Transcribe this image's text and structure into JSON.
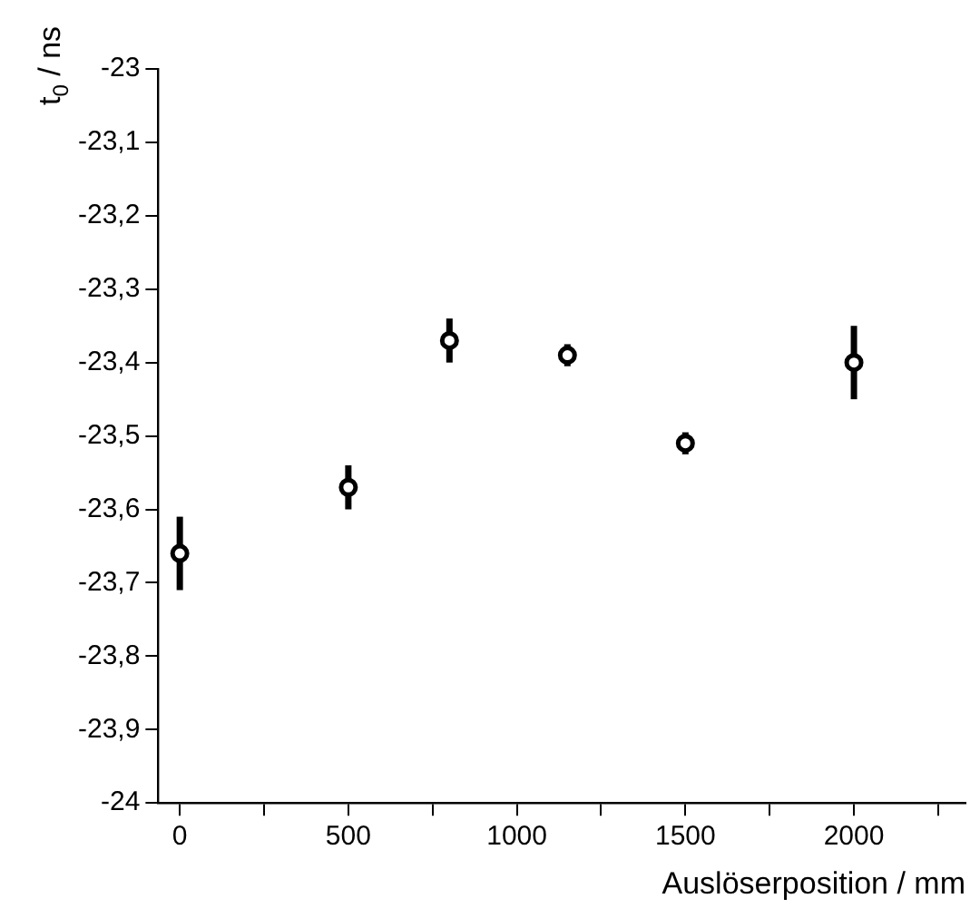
{
  "chart_data": {
    "type": "scatter",
    "xlabel": "Auslöserposition / mm",
    "ylabel": "t$_{0}$ / ns",
    "x": [
      0,
      500,
      800,
      1150,
      1500,
      2000
    ],
    "values": [
      -23.66,
      -23.57,
      -23.37,
      -23.39,
      -23.51,
      -23.4
    ],
    "errors": [
      0.05,
      0.03,
      0.03,
      0.015,
      0.015,
      0.05
    ],
    "color": "#000000",
    "marker": "circle",
    "grid": false,
    "legend": false,
    "xlim": [
      -64,
      2331
    ],
    "ylim": [
      -24,
      -23
    ],
    "xticks": [
      0,
      {
        "value": 250,
        "label": null
      },
      500,
      {
        "value": 750,
        "label": null
      },
      1000,
      {
        "value": 1250,
        "label": null
      },
      1500,
      {
        "value": 1750,
        "label": null
      },
      2000,
      {
        "value": 2250,
        "label": null
      }
    ],
    "yticks": [
      {
        "value": -24,
        "label": "-24"
      },
      {
        "value": -23.9,
        "label": "-23,9"
      },
      {
        "value": -23.8,
        "label": "-23,8"
      },
      {
        "value": -23.7,
        "label": "-23,7"
      },
      {
        "value": -23.6,
        "label": "-23,6"
      },
      {
        "value": -23.5,
        "label": "-23,5"
      },
      {
        "value": -23.4,
        "label": "-23,4"
      },
      {
        "value": -23.3,
        "label": "-23,3"
      },
      {
        "value": -23.2,
        "label": "-23,2"
      },
      {
        "value": -23.1,
        "label": "-23,1"
      },
      {
        "value": -23,
        "label": "-23"
      }
    ]
  }
}
